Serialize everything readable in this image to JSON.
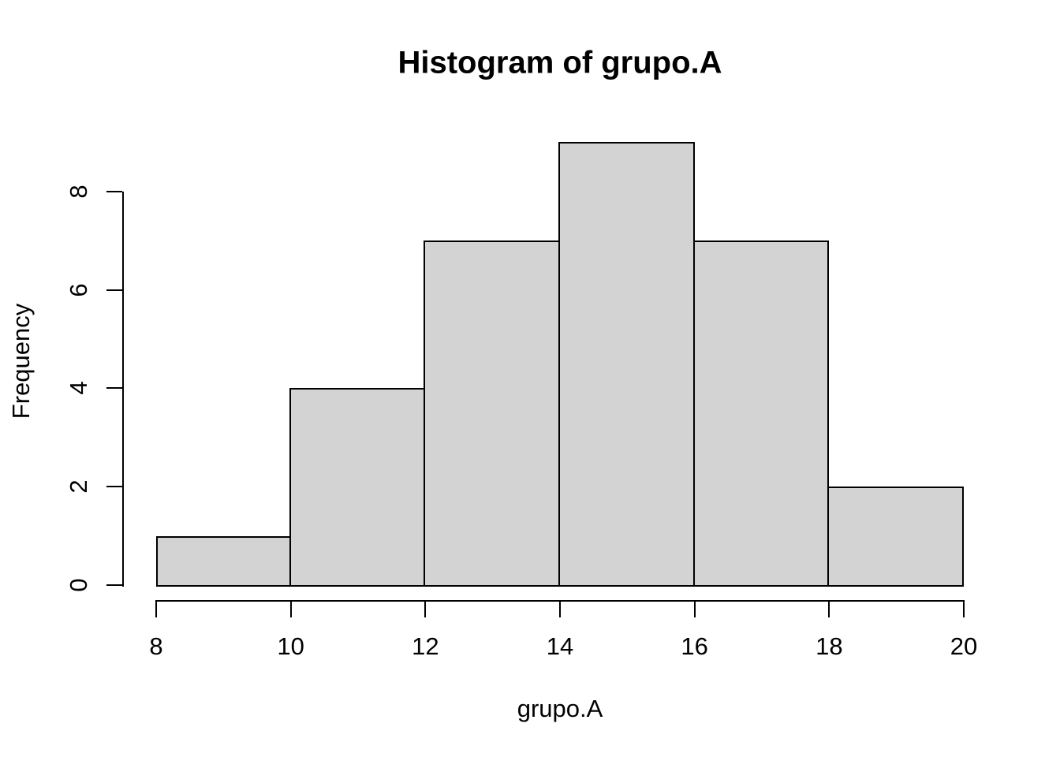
{
  "chart_data": {
    "type": "bar",
    "subtype": "histogram",
    "title": "Histogram of grupo.A",
    "xlabel": "grupo.A",
    "ylabel": "Frequency",
    "bin_edges": [
      8,
      10,
      12,
      14,
      16,
      18,
      20
    ],
    "counts": [
      1,
      4,
      7,
      9,
      7,
      2
    ],
    "x_ticks": [
      "8",
      "10",
      "12",
      "14",
      "16",
      "18",
      "20"
    ],
    "x_tick_values": [
      8,
      10,
      12,
      14,
      16,
      18,
      20
    ],
    "y_ticks": [
      "0",
      "2",
      "4",
      "6",
      "8"
    ],
    "y_tick_values": [
      0,
      2,
      4,
      6,
      8
    ],
    "xlim": [
      8,
      20
    ],
    "ylim": [
      0,
      9
    ],
    "grid": "off",
    "legend": "none",
    "colors": {
      "bar_fill": "#d3d3d3",
      "bar_border": "#000000",
      "axis": "#000000",
      "text": "#000000",
      "background": "#ffffff"
    }
  }
}
